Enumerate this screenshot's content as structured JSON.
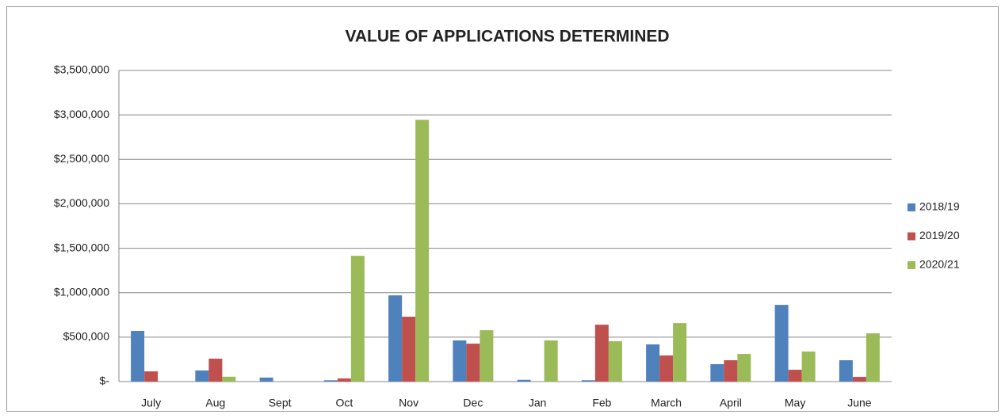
{
  "chart_data": {
    "type": "bar",
    "title": "VALUE OF APPLICATIONS DETERMINED",
    "categories": [
      "July",
      "Aug",
      "Sept",
      "Oct",
      "Nov",
      "Dec",
      "Jan",
      "Feb",
      "March",
      "April",
      "May",
      "June"
    ],
    "series": [
      {
        "name": "2018/19",
        "color": "#4f81bd",
        "values": [
          570000,
          125000,
          45000,
          15000,
          970000,
          463000,
          20000,
          15000,
          418000,
          196000,
          863000,
          240000
        ]
      },
      {
        "name": "2019/20",
        "color": "#c0504d",
        "values": [
          115000,
          258000,
          0,
          35000,
          730000,
          427000,
          0,
          640000,
          294000,
          240000,
          133000,
          53000
        ]
      },
      {
        "name": "2020/21",
        "color": "#9bbb59",
        "values": [
          0,
          55000,
          0,
          1415000,
          2945000,
          578000,
          463000,
          454000,
          658000,
          311000,
          338000,
          543000
        ]
      }
    ],
    "ylim": [
      0,
      3500000
    ],
    "yticks": [
      {
        "value": 0,
        "label": "$-"
      },
      {
        "value": 500000,
        "label": "$500,000"
      },
      {
        "value": 1000000,
        "label": "$1,000,000"
      },
      {
        "value": 1500000,
        "label": "$1,500,000"
      },
      {
        "value": 2000000,
        "label": "$2,000,000"
      },
      {
        "value": 2500000,
        "label": "$2,500,000"
      },
      {
        "value": 3000000,
        "label": "$3,000,000"
      },
      {
        "value": 3500000,
        "label": "$3,500,000"
      }
    ],
    "grid": true,
    "legend": "right"
  }
}
